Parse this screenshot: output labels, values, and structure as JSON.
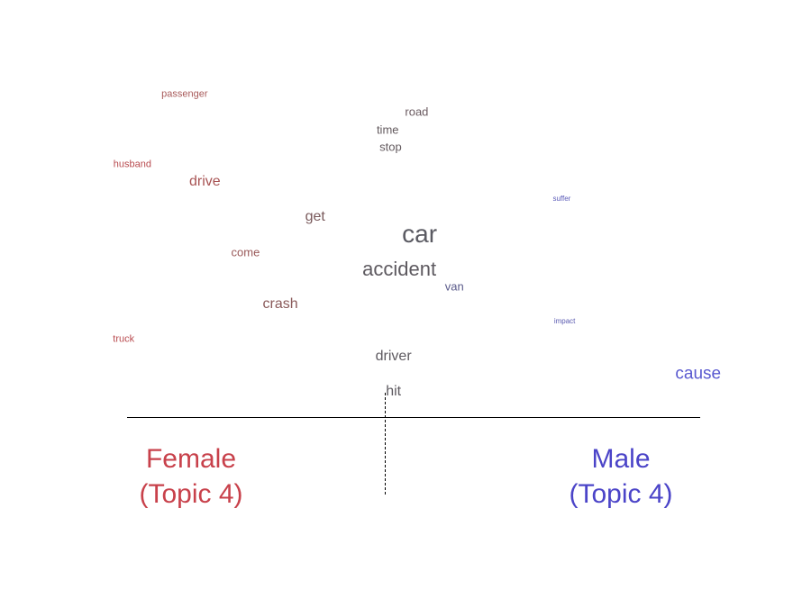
{
  "chart_data": {
    "type": "scatter",
    "title": "",
    "xlabel": "",
    "ylabel": "",
    "groups": [
      {
        "name": "Female",
        "topic": "(Topic 4)",
        "color": "#c8414b"
      },
      {
        "name": "Male",
        "topic": "(Topic 4)",
        "color": "#4b44c8"
      }
    ],
    "words": [
      {
        "text": "passenger",
        "lean": -0.69,
        "rank": 1,
        "size": 1,
        "color": "#a85a5a"
      },
      {
        "text": "road",
        "lean": 0.11,
        "rank": 2,
        "size": 2,
        "color": "#6a5a60"
      },
      {
        "text": "time",
        "lean": 0.01,
        "rank": 3,
        "size": 2,
        "color": "#635a5e"
      },
      {
        "text": "stop",
        "lean": 0.02,
        "rank": 4,
        "size": 2,
        "color": "#635a5e"
      },
      {
        "text": "husband",
        "lean": -0.87,
        "rank": 5,
        "size": 1,
        "color": "#b84a4e"
      },
      {
        "text": "drive",
        "lean": -0.62,
        "rank": 6,
        "size": 3,
        "color": "#a85454"
      },
      {
        "text": "suffer",
        "lean": 0.61,
        "rank": 7,
        "size": 0,
        "color": "#5a5ab8"
      },
      {
        "text": "get",
        "lean": -0.24,
        "rank": 8,
        "size": 3,
        "color": "#7a5a5c"
      },
      {
        "text": "car",
        "lean": 0.12,
        "rank": 9,
        "size": 6,
        "color": "#5a5a62"
      },
      {
        "text": "come",
        "lean": -0.48,
        "rank": 10,
        "size": 2,
        "color": "#9a5a5a"
      },
      {
        "text": "accident",
        "lean": 0.05,
        "rank": 11,
        "size": 5,
        "color": "#5e5a60"
      },
      {
        "text": "van",
        "lean": 0.24,
        "rank": 12,
        "size": 2,
        "color": "#5a5a8a"
      },
      {
        "text": "crash",
        "lean": -0.36,
        "rank": 13,
        "size": 3,
        "color": "#8a5a5a"
      },
      {
        "text": "impact",
        "lean": 0.62,
        "rank": 14,
        "size": 0,
        "color": "#5a5ab0"
      },
      {
        "text": "truck",
        "lean": -0.9,
        "rank": 15,
        "size": 1,
        "color": "#b84a4e"
      },
      {
        "text": "driver",
        "lean": 0.03,
        "rank": 16,
        "size": 3,
        "color": "#5e5a60"
      },
      {
        "text": "cause",
        "lean": 1.08,
        "rank": 17,
        "size": 4,
        "color": "#5a5ad0"
      },
      {
        "text": "hit",
        "lean": 0.03,
        "rank": 18,
        "size": 3,
        "color": "#5e5a60"
      }
    ]
  }
}
